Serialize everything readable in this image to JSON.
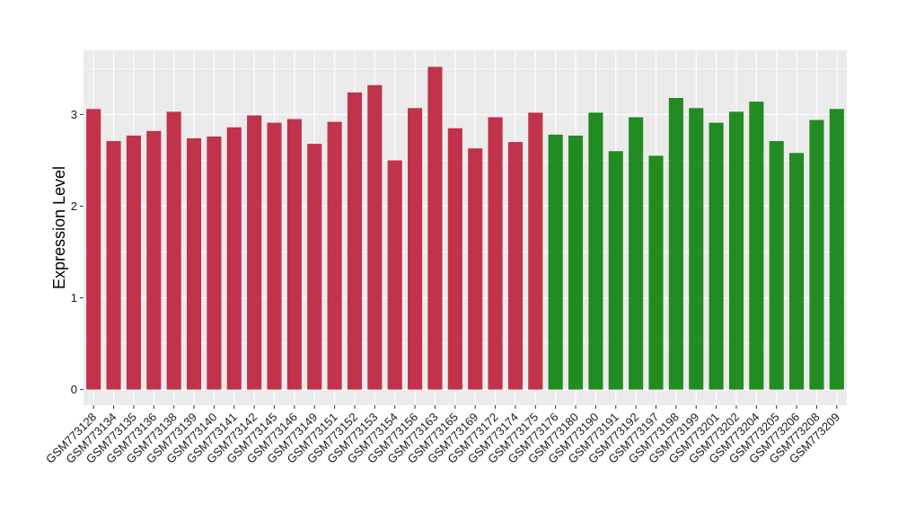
{
  "chart_data": {
    "type": "bar",
    "title": "",
    "xlabel": "",
    "ylabel": "Expression Level",
    "ylim": [
      -0.17,
      3.7
    ],
    "yticks": [
      0,
      1,
      2,
      3
    ],
    "grid": true,
    "background": "#ebebeb",
    "colors": {
      "group_a": "#c0334a",
      "group_b": "#228b22"
    },
    "categories": [
      "GSM773128",
      "GSM773134",
      "GSM773135",
      "GSM773136",
      "GSM773138",
      "GSM773139",
      "GSM773140",
      "GSM773141",
      "GSM773142",
      "GSM773145",
      "GSM773146",
      "GSM773149",
      "GSM773151",
      "GSM773152",
      "GSM773153",
      "GSM773154",
      "GSM773156",
      "GSM773163",
      "GSM773165",
      "GSM773169",
      "GSM773172",
      "GSM773174",
      "GSM773175",
      "GSM773176",
      "GSM773180",
      "GSM773190",
      "GSM773191",
      "GSM773192",
      "GSM773197",
      "GSM773198",
      "GSM773199",
      "GSM773201",
      "GSM773202",
      "GSM773204",
      "GSM773205",
      "GSM773206",
      "GSM773208",
      "GSM773209"
    ],
    "values": [
      3.06,
      2.71,
      2.77,
      2.82,
      3.03,
      2.74,
      2.76,
      2.86,
      2.99,
      2.91,
      2.95,
      2.68,
      2.92,
      3.24,
      3.32,
      2.5,
      3.07,
      3.52,
      2.85,
      2.63,
      2.97,
      2.7,
      3.02,
      2.78,
      2.77,
      3.02,
      2.6,
      2.97,
      2.55,
      3.18,
      3.07,
      2.91,
      3.03,
      3.14,
      2.71,
      2.58,
      2.94,
      3.06
    ],
    "groups": [
      "a",
      "a",
      "a",
      "a",
      "a",
      "a",
      "a",
      "a",
      "a",
      "a",
      "a",
      "a",
      "a",
      "a",
      "a",
      "a",
      "a",
      "a",
      "a",
      "a",
      "a",
      "a",
      "a",
      "b",
      "b",
      "b",
      "b",
      "b",
      "b",
      "b",
      "b",
      "b",
      "b",
      "b",
      "b",
      "b",
      "b",
      "b"
    ]
  }
}
